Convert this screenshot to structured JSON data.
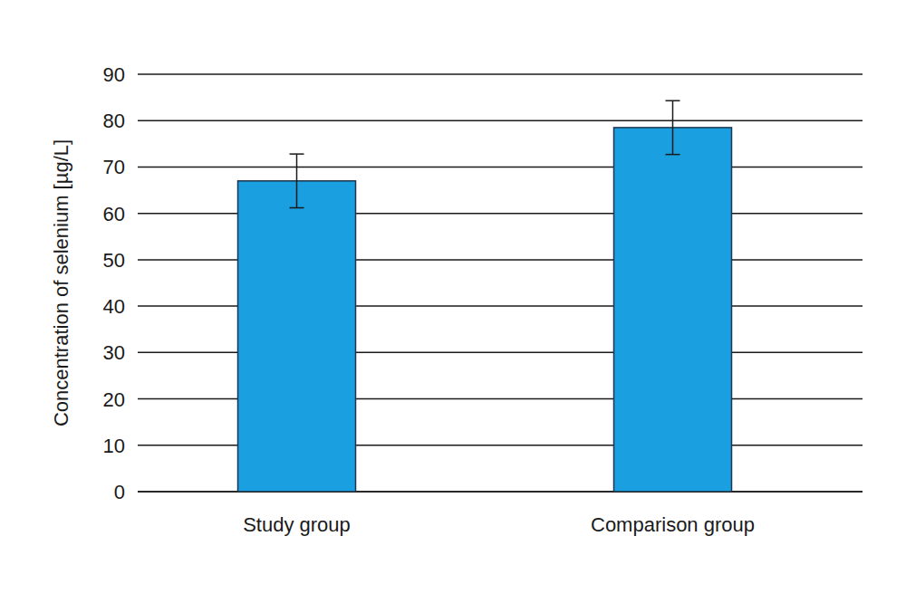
{
  "chart_data": {
    "type": "bar",
    "y_label": "Concentration of selenium [µg/L]",
    "categories": [
      "Study group",
      "Comparison group"
    ],
    "values": [
      67,
      78.5
    ],
    "errors": [
      5.8,
      5.8
    ],
    "color": "#1a9fe0",
    "ylim": [
      0,
      90
    ],
    "yticks": [
      0,
      10,
      20,
      30,
      40,
      50,
      60,
      70,
      80,
      90
    ],
    "grid": true
  }
}
